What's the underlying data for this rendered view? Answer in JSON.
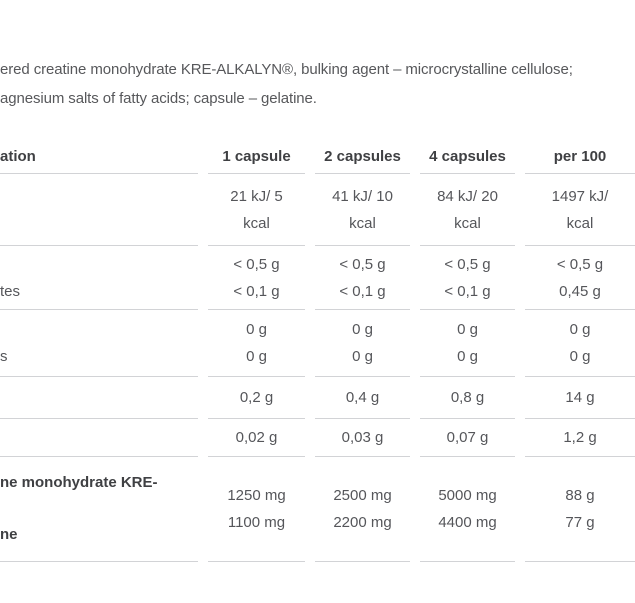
{
  "colors": {
    "background": "#ffffff",
    "body_text": "#57585b",
    "value_text": "#55565a",
    "heading_text": "#3f4043",
    "table_border": "#d2d3d6"
  },
  "ingredients_text": {
    "line1": "ered creatine monohydrate KRE-ALKALYN®, bulking agent – microcrystalline cellulose;",
    "line2": "agnesium salts of fatty acids; capsule – gelatine."
  },
  "nutrition_table": {
    "header": {
      "label_fragment": "ation",
      "columns": [
        "1 capsule",
        "2 capsules",
        "4 capsules",
        "per 100"
      ]
    },
    "rows": [
      {
        "id": "energy",
        "label_lines": [
          "",
          ""
        ],
        "values": [
          [
            "21 kJ/ 5",
            "kcal"
          ],
          [
            "41 kJ/ 10",
            "kcal"
          ],
          [
            "84 kJ/ 20",
            "kcal"
          ],
          [
            "1497 kJ/",
            "kcal"
          ]
        ]
      },
      {
        "id": "fat-saturates",
        "label_lines": [
          "",
          "tes"
        ],
        "values": [
          [
            "< 0,5 g",
            "< 0,1 g"
          ],
          [
            "< 0,5 g",
            "< 0,1 g"
          ],
          [
            "< 0,5 g",
            "< 0,1 g"
          ],
          [
            "< 0,5 g",
            "0,45 g"
          ]
        ]
      },
      {
        "id": "carbohydrates-sugars",
        "label_lines": [
          "",
          "s"
        ],
        "values": [
          [
            "0 g",
            "0 g"
          ],
          [
            "0 g",
            "0 g"
          ],
          [
            "0 g",
            "0 g"
          ],
          [
            "0 g",
            "0 g"
          ]
        ]
      },
      {
        "id": "protein",
        "label_lines": [
          ""
        ],
        "values": [
          [
            "0,2 g"
          ],
          [
            "0,4 g"
          ],
          [
            "0,8 g"
          ],
          [
            "14 g"
          ]
        ]
      },
      {
        "id": "salt",
        "label_lines": [
          ""
        ],
        "values": [
          [
            "0,02 g"
          ],
          [
            "0,03 g"
          ],
          [
            "0,07 g"
          ],
          [
            "1,2 g"
          ]
        ]
      },
      {
        "id": "creatine-monohydrate",
        "label_lines": [
          "ne monohydrate KRE-",
          "ne"
        ],
        "values": [
          [
            "1250 mg",
            "1100 mg"
          ],
          [
            "2500 mg",
            "2200 mg"
          ],
          [
            "5000 mg",
            "4400 mg"
          ],
          [
            "88 g",
            "77 g"
          ]
        ]
      }
    ]
  }
}
